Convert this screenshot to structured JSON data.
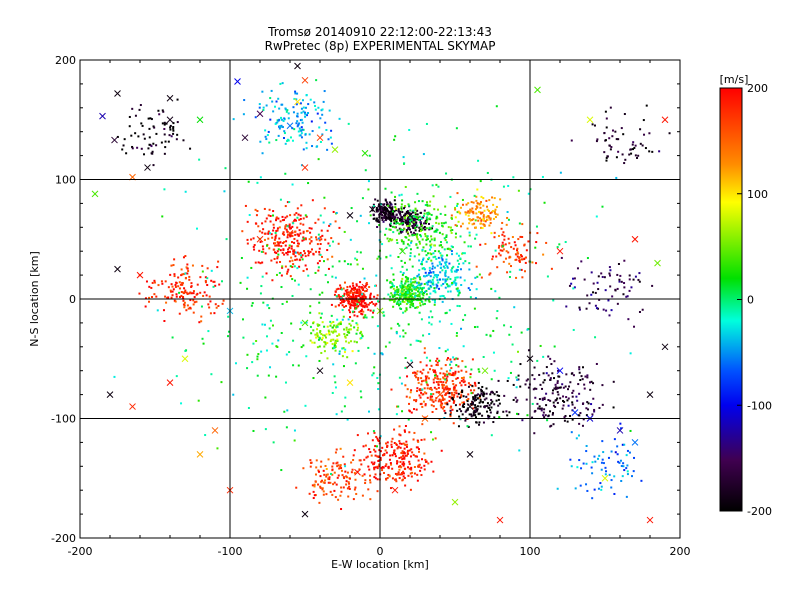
{
  "chart_data": {
    "type": "scatter",
    "title": "Tromsø 20140910 22:12:00-22:13:43",
    "subtitle": "RwPretec (8p) EXPERIMENTAL SKYMAP",
    "xlabel": "E-W location [km]",
    "ylabel": "N-S location [km]",
    "xlim": [
      -200,
      200
    ],
    "ylim": [
      -200,
      200
    ],
    "xticks": [
      "-200",
      "-100",
      "0",
      "100",
      "200"
    ],
    "yticks": [
      "-200",
      "-100",
      "0",
      "100",
      "200"
    ],
    "grid_lines_x": [
      -100,
      0,
      100
    ],
    "grid_lines_y": [
      -100,
      0,
      100
    ],
    "colorbar": {
      "label": "[m/s]",
      "range": [
        -200,
        200
      ],
      "ticks": [
        "200",
        "100",
        "0",
        "-100",
        "-200"
      ],
      "colormap": "rainbow+black"
    },
    "clusters": [
      {
        "x": -15,
        "y": 0,
        "r": 18,
        "v": 195,
        "n": 40
      },
      {
        "x": 18,
        "y": 5,
        "r": 18,
        "v": 25,
        "n": 45
      },
      {
        "x": 5,
        "y": 72,
        "r": 14,
        "v": -185,
        "n": 30
      },
      {
        "x": 22,
        "y": 65,
        "r": 15,
        "v": -170,
        "n": 22
      },
      {
        "x": -60,
        "y": 48,
        "r": 40,
        "v": 190,
        "n": 45
      },
      {
        "x": 30,
        "y": 60,
        "r": 40,
        "v": 30,
        "n": 35
      },
      {
        "x": 65,
        "y": 72,
        "r": 22,
        "v": 130,
        "n": 20
      },
      {
        "x": 40,
        "y": -75,
        "r": 35,
        "v": 180,
        "n": 45
      },
      {
        "x": 65,
        "y": -88,
        "r": 25,
        "v": -190,
        "n": 25
      },
      {
        "x": 10,
        "y": -135,
        "r": 35,
        "v": 190,
        "n": 40
      },
      {
        "x": -30,
        "y": -150,
        "r": 30,
        "v": 170,
        "n": 20
      },
      {
        "x": 120,
        "y": -80,
        "r": 45,
        "v": -170,
        "n": 30
      },
      {
        "x": -130,
        "y": 10,
        "r": 35,
        "v": 180,
        "n": 25
      },
      {
        "x": -60,
        "y": 150,
        "r": 40,
        "v": -40,
        "n": 25
      },
      {
        "x": 40,
        "y": 20,
        "r": 30,
        "v": -30,
        "n": 30
      },
      {
        "x": -30,
        "y": -30,
        "r": 25,
        "v": 60,
        "n": 20
      },
      {
        "x": 90,
        "y": 40,
        "r": 30,
        "v": 170,
        "n": 15
      },
      {
        "x": -150,
        "y": 140,
        "r": 35,
        "v": -190,
        "n": 12
      },
      {
        "x": 160,
        "y": 130,
        "r": 35,
        "v": -180,
        "n": 10
      },
      {
        "x": 150,
        "y": 10,
        "r": 40,
        "v": -150,
        "n": 12
      },
      {
        "x": 150,
        "y": -140,
        "r": 40,
        "v": -60,
        "n": 12
      },
      {
        "x": 0,
        "y": 0,
        "r": 190,
        "v": 0,
        "n": 90
      }
    ],
    "crosses": [
      [
        -175,
        172,
        -190
      ],
      [
        -140,
        168,
        -190
      ],
      [
        -185,
        153,
        -120
      ],
      [
        -140,
        150,
        -185
      ],
      [
        -177,
        133,
        -170
      ],
      [
        -120,
        150,
        20
      ],
      [
        -95,
        182,
        -100
      ],
      [
        -55,
        195,
        -190
      ],
      [
        -50,
        183,
        170
      ],
      [
        -55,
        165,
        100
      ],
      [
        -80,
        155,
        -150
      ],
      [
        -60,
        145,
        -60
      ],
      [
        -40,
        135,
        170
      ],
      [
        -10,
        122,
        30
      ],
      [
        -50,
        110,
        180
      ],
      [
        -165,
        102,
        150
      ],
      [
        -155,
        110,
        -190
      ],
      [
        -190,
        88,
        40
      ],
      [
        -90,
        135,
        -170
      ],
      [
        -30,
        125,
        60
      ],
      [
        -20,
        70,
        -190
      ],
      [
        -5,
        75,
        -190
      ],
      [
        5,
        68,
        -190
      ],
      [
        20,
        70,
        -190
      ],
      [
        -60,
        55,
        170
      ],
      [
        -80,
        50,
        180
      ],
      [
        15,
        40,
        30
      ],
      [
        -10,
        10,
        190
      ],
      [
        -20,
        0,
        190
      ],
      [
        0,
        -10,
        60
      ],
      [
        -50,
        -20,
        40
      ],
      [
        -40,
        -60,
        -190
      ],
      [
        -20,
        -70,
        100
      ],
      [
        20,
        -55,
        -190
      ],
      [
        40,
        -80,
        160
      ],
      [
        60,
        -90,
        -190
      ],
      [
        70,
        -60,
        50
      ],
      [
        100,
        -50,
        -190
      ],
      [
        120,
        -60,
        -100
      ],
      [
        130,
        -95,
        -80
      ],
      [
        140,
        -100,
        -110
      ],
      [
        160,
        -110,
        -120
      ],
      [
        180,
        -80,
        -190
      ],
      [
        190,
        -40,
        -190
      ],
      [
        150,
        -150,
        80
      ],
      [
        170,
        -120,
        -60
      ],
      [
        -180,
        -80,
        -190
      ],
      [
        -165,
        -90,
        180
      ],
      [
        -140,
        -70,
        190
      ],
      [
        -110,
        -110,
        150
      ],
      [
        -120,
        -130,
        120
      ],
      [
        -100,
        -160,
        180
      ],
      [
        -50,
        -180,
        -190
      ],
      [
        50,
        -170,
        60
      ],
      [
        80,
        -185,
        190
      ],
      [
        180,
        -185,
        190
      ],
      [
        170,
        50,
        190
      ],
      [
        185,
        30,
        50
      ],
      [
        120,
        40,
        190
      ],
      [
        140,
        150,
        80
      ],
      [
        105,
        175,
        40
      ],
      [
        190,
        150,
        190
      ],
      [
        -175,
        25,
        -190
      ],
      [
        -160,
        20,
        190
      ],
      [
        -130,
        -50,
        80
      ],
      [
        -100,
        -10,
        -40
      ],
      [
        30,
        -100,
        150
      ],
      [
        60,
        -130,
        -190
      ],
      [
        10,
        -160,
        190
      ],
      [
        -15,
        -145,
        190
      ]
    ]
  }
}
